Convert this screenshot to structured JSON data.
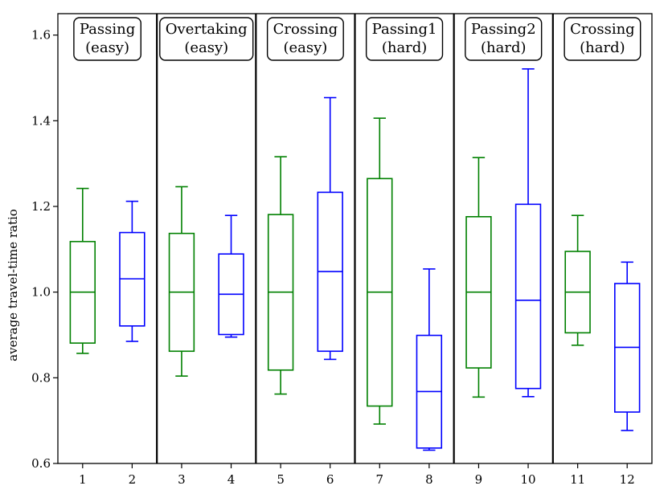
{
  "chart_data": {
    "type": "box",
    "title": "",
    "xlabel": "",
    "ylabel": "average travel-time ratio",
    "ylim": [
      0.6,
      1.65
    ],
    "yticks": [
      "0.6",
      "0.8",
      "1.0",
      "1.2",
      "1.4",
      "1.6"
    ],
    "ytick_values": [
      0.6,
      0.8,
      1.0,
      1.2,
      1.4,
      1.6
    ],
    "colors": {
      "odd": "#008000",
      "even": "#0000ff"
    },
    "groups": [
      {
        "line1": "Passing",
        "line2": "(easy)"
      },
      {
        "line1": "Overtaking",
        "line2": "(easy)"
      },
      {
        "line1": "Crossing",
        "line2": "(easy)"
      },
      {
        "line1": "Passing1",
        "line2": "(hard)"
      },
      {
        "line1": "Passing2",
        "line2": "(hard)"
      },
      {
        "line1": "Crossing",
        "line2": "(hard)"
      }
    ],
    "boxes": [
      {
        "label": "1",
        "whislo": 0.857,
        "q1": 0.881,
        "med": 1.0,
        "q3": 1.118,
        "whishi": 1.242
      },
      {
        "label": "2",
        "whislo": 0.885,
        "q1": 0.921,
        "med": 1.031,
        "q3": 1.139,
        "whishi": 1.212
      },
      {
        "label": "3",
        "whislo": 0.804,
        "q1": 0.862,
        "med": 1.0,
        "q3": 1.137,
        "whishi": 1.246
      },
      {
        "label": "4",
        "whislo": 0.895,
        "q1": 0.901,
        "med": 0.995,
        "q3": 1.089,
        "whishi": 1.179
      },
      {
        "label": "5",
        "whislo": 0.762,
        "q1": 0.818,
        "med": 1.0,
        "q3": 1.181,
        "whishi": 1.316
      },
      {
        "label": "6",
        "whislo": 0.843,
        "q1": 0.862,
        "med": 1.048,
        "q3": 1.233,
        "whishi": 1.454
      },
      {
        "label": "7",
        "whislo": 0.692,
        "q1": 0.734,
        "med": 1.0,
        "q3": 1.265,
        "whishi": 1.406
      },
      {
        "label": "8",
        "whislo": 0.631,
        "q1": 0.636,
        "med": 0.768,
        "q3": 0.899,
        "whishi": 1.054
      },
      {
        "label": "9",
        "whislo": 0.755,
        "q1": 0.823,
        "med": 1.0,
        "q3": 1.176,
        "whishi": 1.314
      },
      {
        "label": "10",
        "whislo": 0.756,
        "q1": 0.775,
        "med": 0.981,
        "q3": 1.205,
        "whishi": 1.521
      },
      {
        "label": "11",
        "whislo": 0.876,
        "q1": 0.905,
        "med": 1.0,
        "q3": 1.095,
        "whishi": 1.179
      },
      {
        "label": "12",
        "whislo": 0.677,
        "q1": 0.72,
        "med": 0.871,
        "q3": 1.02,
        "whishi": 1.07
      }
    ]
  }
}
